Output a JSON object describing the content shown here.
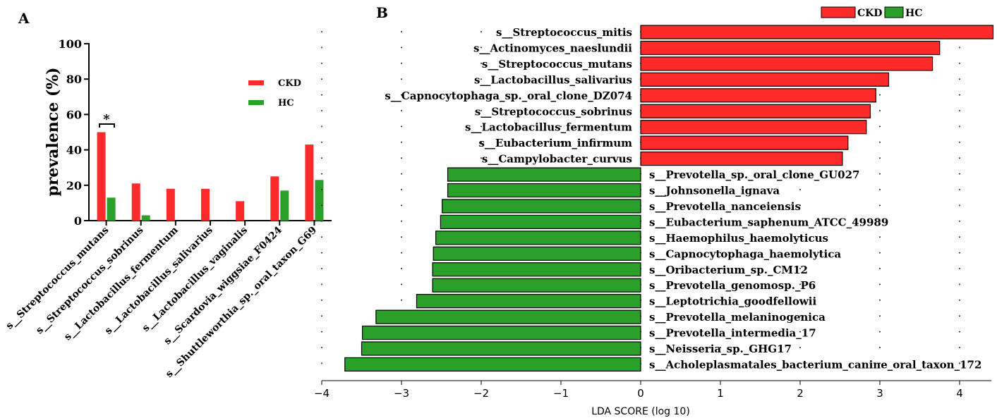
{
  "chart_data": [
    {
      "panel_label": "A",
      "type": "bar",
      "ylabel": "prevalence (%)",
      "ylim": [
        0,
        100
      ],
      "yticks": [
        0,
        20,
        40,
        60,
        80,
        100
      ],
      "categories": [
        "s__Streptococcus_mutans",
        "s__Streptococcus_sobrinus",
        "s__Lactobacillus_fermentum",
        "s__Lactobacillus_salivarius",
        "s__Lactobacillus_vaginalis",
        "s__Scardovia_wiggsiae_F0424",
        "s__Shuttleworthia_sp._oral_taxon_G69"
      ],
      "series": [
        {
          "name": "CKD",
          "color": "#ff2a2a",
          "values": [
            50,
            21,
            18,
            18,
            11,
            25,
            43
          ]
        },
        {
          "name": "HC",
          "color": "#2aa02a",
          "values": [
            13,
            3,
            0,
            0,
            0,
            17,
            23
          ]
        }
      ],
      "legend_position": "top-right",
      "annotation": {
        "text": "*",
        "category_index": 0
      }
    },
    {
      "panel_label": "B",
      "type": "bar",
      "orientation": "horizontal",
      "xlabel": "LDA SCORE (log 10)",
      "xlim": [
        -4,
        4.4
      ],
      "xticks": [
        -4,
        -3,
        -2,
        -1,
        0,
        1,
        2,
        3,
        4
      ],
      "xtick_labels": [
        "−4",
        "−3",
        "−2",
        "−1",
        "0",
        "1",
        "2",
        "3",
        "4"
      ],
      "legend_position": "top-right",
      "groups": [
        {
          "name": "CKD",
          "color": "#ff2a2a"
        },
        {
          "name": "HC",
          "color": "#2aa02a"
        }
      ],
      "bars": [
        {
          "label": "s__Streptococcus_mitis",
          "value": 4.42,
          "group": "CKD"
        },
        {
          "label": "s__Actinomyces_naeslundii",
          "value": 3.75,
          "group": "CKD"
        },
        {
          "label": "s__Streptococcus_mutans",
          "value": 3.66,
          "group": "CKD"
        },
        {
          "label": "s__Lactobacillus_salivarius",
          "value": 3.11,
          "group": "CKD"
        },
        {
          "label": "s__Capnocytophaga_sp._oral_clone_DZ074",
          "value": 2.95,
          "group": "CKD"
        },
        {
          "label": "s__Streptococcus_sobrinus",
          "value": 2.88,
          "group": "CKD"
        },
        {
          "label": "s__Lactobacillus_fermentum",
          "value": 2.83,
          "group": "CKD"
        },
        {
          "label": "s__Eubacterium_infirmum",
          "value": 2.6,
          "group": "CKD"
        },
        {
          "label": "s__Campylobacter_curvus",
          "value": 2.53,
          "group": "CKD"
        },
        {
          "label": "s__Prevotella_sp._oral_clone_GU027",
          "value": -2.42,
          "group": "HC"
        },
        {
          "label": "s__Johnsonella_ignava",
          "value": -2.42,
          "group": "HC"
        },
        {
          "label": "s__Prevotella_nanceiensis",
          "value": -2.49,
          "group": "HC"
        },
        {
          "label": "s__Eubacterium_saphenum_ATCC_49989",
          "value": -2.51,
          "group": "HC"
        },
        {
          "label": "s__Haemophilus_haemolyticus",
          "value": -2.57,
          "group": "HC"
        },
        {
          "label": "s__Capnocytophaga_haemolytica",
          "value": -2.6,
          "group": "HC"
        },
        {
          "label": "s__Oribacterium_sp._CM12",
          "value": -2.61,
          "group": "HC"
        },
        {
          "label": "s__Prevotella_genomosp._P6",
          "value": -2.61,
          "group": "HC"
        },
        {
          "label": "s__Leptotrichia_goodfellowii",
          "value": -2.81,
          "group": "HC"
        },
        {
          "label": "s__Prevotella_melaninogenica",
          "value": -3.32,
          "group": "HC"
        },
        {
          "label": "s__Prevotella_intermedia_17",
          "value": -3.49,
          "group": "HC"
        },
        {
          "label": "s__Neisseria_sp._GHG17",
          "value": -3.5,
          "group": "HC"
        },
        {
          "label": "s__Acholeplasmatales_bacterium_canine_oral_taxon_172",
          "value": -3.71,
          "group": "HC"
        }
      ]
    }
  ]
}
